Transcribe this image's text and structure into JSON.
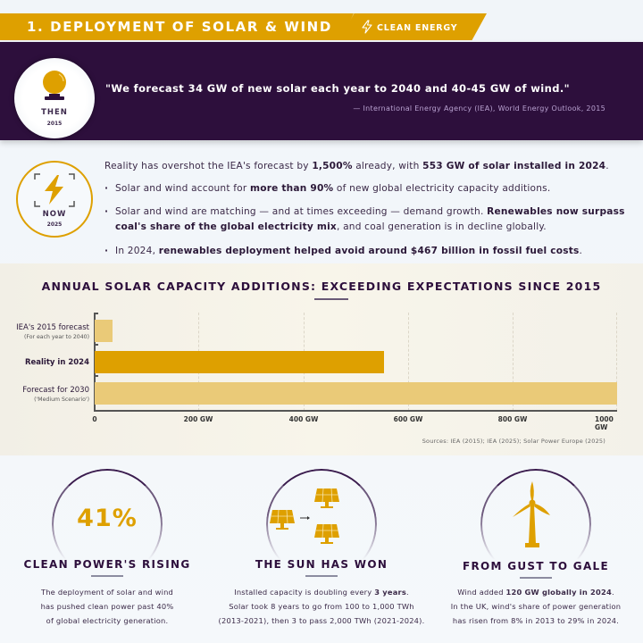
{
  "header": {
    "title": "1. DEPLOYMENT OF SOLAR & WIND",
    "tag_label": "CLEAN ENERGY",
    "tag_icon": "lightning-bolt-outline-icon",
    "accent_color": "#dea000",
    "dark_color": "#2d0f3c"
  },
  "then": {
    "icon": "crystal-ball-icon",
    "label": "THEN",
    "year": "2015",
    "quote": "\"We forecast 34 GW of new solar each year to 2040 and 40-45 GW of wind.\"",
    "source": "— International Energy Agency (IEA), World Energy Outlook, 2015"
  },
  "now": {
    "icon": "lightning-bolt-icon",
    "label": "NOW",
    "year": "2025",
    "intro": {
      "t1": "Reality has overshot the IEA's forecast by ",
      "b1": "1,500%",
      "t2": " already, with ",
      "b2": "553 GW of solar installed in 2024",
      "t3": "."
    },
    "bullets": [
      {
        "t1": "Solar and wind account for ",
        "b1": "more than 90%",
        "t2": " of new global electricity capacity additions."
      },
      {
        "t1": "Solar and wind are matching — and at times exceeding — demand growth. ",
        "b1": "Renewables now surpass coal's share of the global electricity mix",
        "t2": ", and coal generation is in decline globally."
      },
      {
        "t1": "In 2024, ",
        "b1": "renewables deployment helped avoid around $467 billion in fossil fuel costs",
        "t2": "."
      }
    ]
  },
  "chart_data": {
    "type": "bar",
    "orientation": "horizontal",
    "title": "ANNUAL SOLAR CAPACITY ADDITIONS: EXCEEDING EXPECTATIONS SINCE 2015",
    "categories": [
      "IEA's 2015 forecast",
      "Reality in 2024",
      "Forecast for 2030"
    ],
    "category_subtitles": [
      "(For each year to 2040)",
      "",
      "('Medium Scenario')"
    ],
    "values": [
      34,
      553,
      1000
    ],
    "unit": "GW",
    "colors": [
      "#eaca78",
      "#dea000",
      "#eaca78"
    ],
    "xlabel": "",
    "ylabel": "",
    "xlim": [
      0,
      1000
    ],
    "xticks": [
      "0",
      "200 GW",
      "400 GW",
      "600 GW",
      "800 GW",
      "1000 GW"
    ],
    "xtick_values": [
      0,
      200,
      400,
      600,
      800,
      1000
    ],
    "grid": "vertical dashed",
    "sources": "Sources: IEA (2015); IEA (2025); Solar Power Europe (2025)"
  },
  "cards": [
    {
      "stat": "41%",
      "heading": "CLEAN POWER'S RISING",
      "body": [
        "The deployment of solar and wind",
        "has pushed clean power past 40%",
        "of global electricity generation."
      ]
    },
    {
      "icon": "solar-panels-doubling-icon",
      "heading": "THE SUN HAS WON",
      "body_l1_t": "Installed capacity is doubling every ",
      "body_l1_b": "3 years",
      "body_l1_e": ".",
      "body": [
        "Solar took 8 years to go from 100 to 1,000 TWh",
        "(2013-2021), then 3 to pass 2,000 TWh (2021-2024)."
      ]
    },
    {
      "icon": "wind-turbine-icon",
      "heading": "FROM GUST TO GALE",
      "body_l1_t": "Wind added ",
      "body_l1_b": "120 GW globally in 2024",
      "body_l1_e": ".",
      "body": [
        "In the UK, wind's share of power generation",
        "has risen from 8% in 2013 to 29% in 2024."
      ]
    }
  ]
}
